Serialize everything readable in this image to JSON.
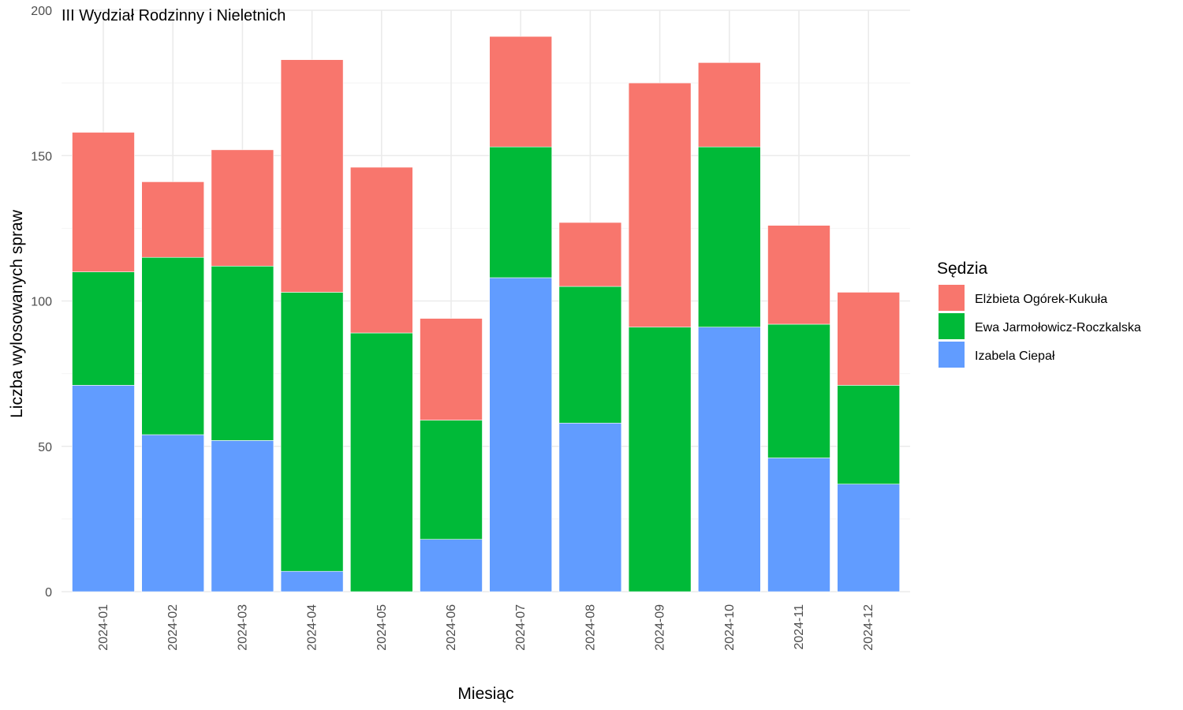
{
  "chart_data": {
    "type": "bar",
    "stacked": true,
    "title": "III Wydział Rodzinny i Nieletnich",
    "xlabel": "Miesiąc",
    "ylabel": "Liczba wylosowanych spraw",
    "ylim": [
      0,
      200
    ],
    "yticks": [
      0,
      50,
      100,
      150,
      200
    ],
    "grid": true,
    "legend": {
      "title": "Sędzia",
      "position": "right"
    },
    "categories": [
      "2024-01",
      "2024-02",
      "2024-03",
      "2024-04",
      "2024-05",
      "2024-06",
      "2024-07",
      "2024-08",
      "2024-09",
      "2024-10",
      "2024-11",
      "2024-12"
    ],
    "series": [
      {
        "name": "Izabela Ciepał",
        "color": "#619cff",
        "values": [
          71,
          54,
          52,
          7,
          0,
          18,
          108,
          58,
          0,
          91,
          46,
          37
        ]
      },
      {
        "name": "Ewa Jarmołowicz-Roczkalska",
        "color": "#00ba38",
        "values": [
          39,
          61,
          60,
          96,
          89,
          41,
          45,
          47,
          91,
          62,
          46,
          34
        ]
      },
      {
        "name": "Elżbieta Ogórek-Kukuła",
        "color": "#f8766d",
        "values": [
          48,
          26,
          40,
          80,
          57,
          35,
          38,
          22,
          84,
          29,
          34,
          32
        ]
      }
    ],
    "legend_order": [
      "Elżbieta Ogórek-Kukuła",
      "Ewa Jarmołowicz-Roczkalska",
      "Izabela Ciepał"
    ]
  }
}
